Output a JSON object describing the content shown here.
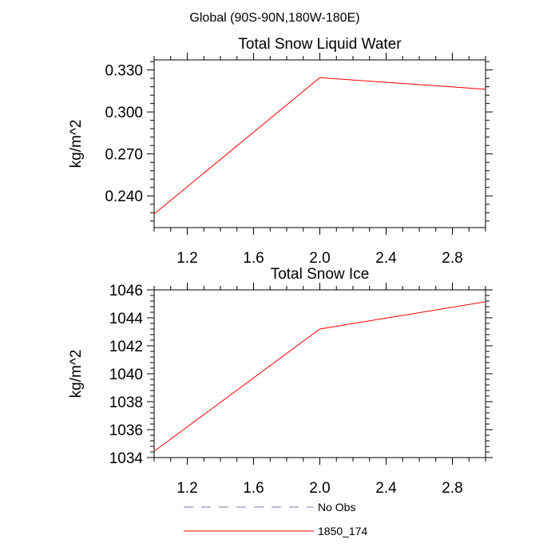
{
  "header": {
    "region": "Global (90S-90N,180W-180E)"
  },
  "chart_data": [
    {
      "type": "line",
      "title": "Total Snow Liquid Water",
      "xlabel": "",
      "ylabel": "kg/m^2",
      "xlim": [
        1.0,
        3.0
      ],
      "ylim": [
        0.2173,
        0.3372
      ],
      "xticks": [
        1.2,
        1.6,
        2.0,
        2.4,
        2.8
      ],
      "xtick_labels": [
        "1.2",
        "1.6",
        "2.0",
        "2.4",
        "2.8"
      ],
      "yticks": [
        0.24,
        0.27,
        0.3,
        0.33
      ],
      "ytick_labels": [
        "0.240",
        "0.270",
        "0.300",
        "0.330"
      ],
      "series": [
        {
          "name": "1850_174",
          "color": "#ff0000",
          "x": [
            1.0,
            2.0,
            3.0
          ],
          "y": [
            0.227,
            0.3245,
            0.3162
          ]
        }
      ]
    },
    {
      "type": "line",
      "title": "Total Snow Ice",
      "xlabel": "",
      "ylabel": "kg/m^2",
      "xlim": [
        1.0,
        3.0
      ],
      "ylim": [
        1034,
        1046
      ],
      "xticks": [
        1.2,
        1.6,
        2.0,
        2.4,
        2.8
      ],
      "xtick_labels": [
        "1.2",
        "1.6",
        "2.0",
        "2.4",
        "2.8"
      ],
      "yticks": [
        1034,
        1036,
        1038,
        1040,
        1042,
        1044,
        1046
      ],
      "ytick_labels": [
        "1034",
        "1036",
        "1038",
        "1040",
        "1042",
        "1044",
        "1046"
      ],
      "series": [
        {
          "name": "1850_174",
          "color": "#ff0000",
          "x": [
            1.0,
            2.0,
            3.0
          ],
          "y": [
            1034.45,
            1043.2,
            1045.15
          ]
        }
      ]
    }
  ],
  "legend": {
    "placement": "bottom",
    "items": [
      {
        "label": "No Obs",
        "style": "dashed",
        "color": "#7777aa"
      },
      {
        "label": "1850_174",
        "style": "solid",
        "color": "#ff0000"
      }
    ]
  }
}
